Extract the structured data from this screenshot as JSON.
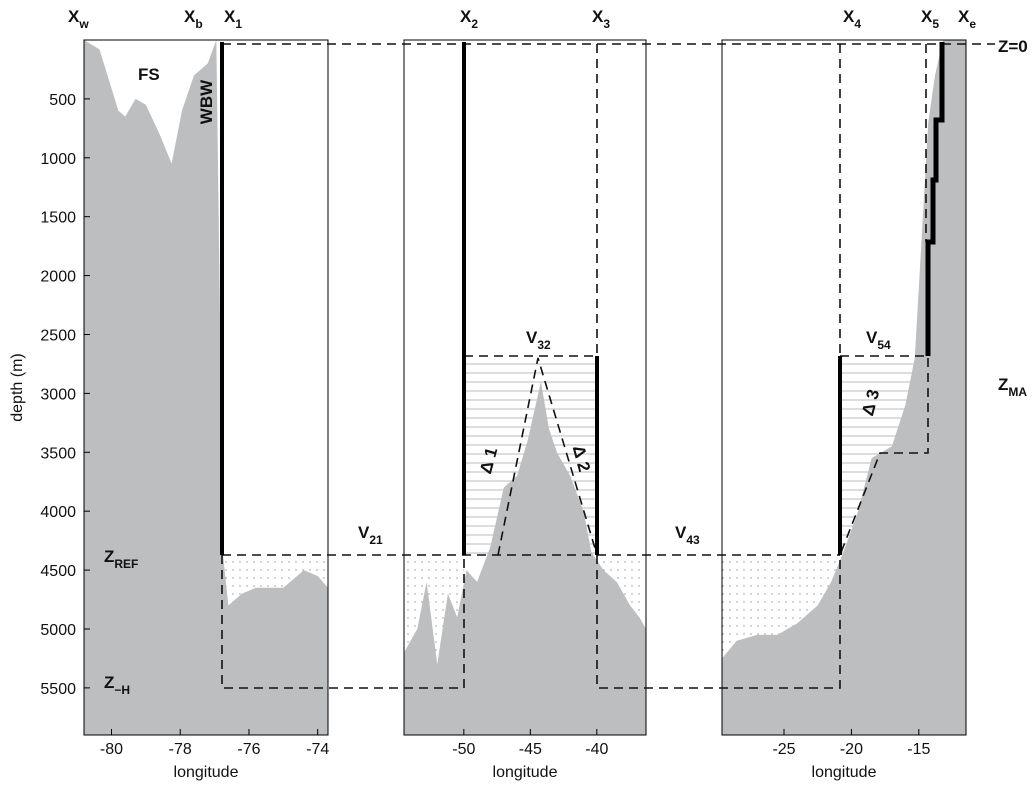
{
  "chart_data": [
    {
      "type": "area",
      "color": "#bdbec0",
      "xlabel": "longitude",
      "ylabel": "depth (m)",
      "x": [
        -80.8,
        -80.35,
        -79.8,
        -79.6,
        -79.3,
        -79.0,
        -78.6,
        -78.25,
        -77.95,
        -77.6,
        -77.2,
        -76.95,
        -76.75,
        -76.6,
        -76.2,
        -75.8,
        -75.0,
        -74.4,
        -74.0,
        -73.7
      ],
      "values": [
        0,
        80,
        600,
        650,
        500,
        550,
        800,
        1050,
        600,
        300,
        200,
        0,
        4380,
        4800,
        4700,
        4650,
        4650,
        4500,
        4550,
        4650
      ],
      "xlim": [
        -80.8,
        -73.7
      ],
      "xticks": [
        -80,
        -78,
        -76,
        -74
      ],
      "ylim": [
        0,
        5900
      ],
      "yticks": [
        500,
        1000,
        1500,
        2000,
        2500,
        3000,
        3500,
        4000,
        4500,
        5000,
        5500
      ]
    },
    {
      "type": "area",
      "color": "#bdbec0",
      "xlabel": "longitude",
      "x": [
        -54.5,
        -53.5,
        -52.8,
        -52.0,
        -51.2,
        -50.5,
        -49.8,
        -49.0,
        -48.0,
        -47.0,
        -46.0,
        -45.2,
        -44.6,
        -44.2,
        -43.6,
        -43.0,
        -42.0,
        -41.0,
        -40.4,
        -39.5,
        -38.5,
        -37.5,
        -36.8,
        -36.3
      ],
      "values": [
        5200,
        5000,
        4600,
        5300,
        4700,
        4900,
        4500,
        4600,
        4300,
        3800,
        3700,
        3400,
        3100,
        2900,
        3300,
        3500,
        3700,
        4000,
        4350,
        4500,
        4600,
        4800,
        4900,
        5000
      ],
      "xlim": [
        -54.5,
        -36.3
      ],
      "xticks": [
        -50,
        -45,
        -40
      ],
      "ylim": [
        0,
        5900
      ]
    },
    {
      "type": "area",
      "color": "#bdbec0",
      "xlabel": "longitude",
      "x": [
        -29.6,
        -28.5,
        -27.0,
        -25.5,
        -24.0,
        -22.5,
        -21.5,
        -20.6,
        -19.5,
        -18.5,
        -17.0,
        -16.0,
        -15.3,
        -14.8,
        -14.3,
        -13.8,
        -13.2,
        -11.5
      ],
      "values": [
        5250,
        5100,
        5050,
        5050,
        4950,
        4800,
        4600,
        4350,
        4000,
        3550,
        3450,
        3100,
        2700,
        1700,
        700,
        300,
        0,
        0
      ],
      "xlim": [
        -29.6,
        -11.5
      ],
      "xticks": [
        -25,
        -20,
        -15
      ],
      "ylim": [
        0,
        5900
      ]
    }
  ],
  "annotations": [
    {
      "text": "X",
      "sub": "w"
    },
    {
      "text": "X",
      "sub": "b"
    },
    {
      "text": "X",
      "sub": "1"
    },
    {
      "text": "X",
      "sub": "2"
    },
    {
      "text": "X",
      "sub": "3"
    },
    {
      "text": "X",
      "sub": "4"
    },
    {
      "text": "X",
      "sub": "5"
    },
    {
      "text": "X",
      "sub": "e"
    },
    {
      "text": "Z=0"
    },
    {
      "text": "Z",
      "sub": "MA"
    },
    {
      "text": "Z",
      "sub": "REF"
    },
    {
      "text": "Z",
      "sub": "−H"
    },
    {
      "text": "V",
      "sub": "21"
    },
    {
      "text": "V",
      "sub": "32"
    },
    {
      "text": "V",
      "sub": "43"
    },
    {
      "text": "V",
      "sub": "54"
    },
    {
      "text": "FS"
    },
    {
      "text": "WBW"
    },
    {
      "text": "Δ 1"
    },
    {
      "text": "Δ 2"
    },
    {
      "text": "Δ 3"
    }
  ]
}
